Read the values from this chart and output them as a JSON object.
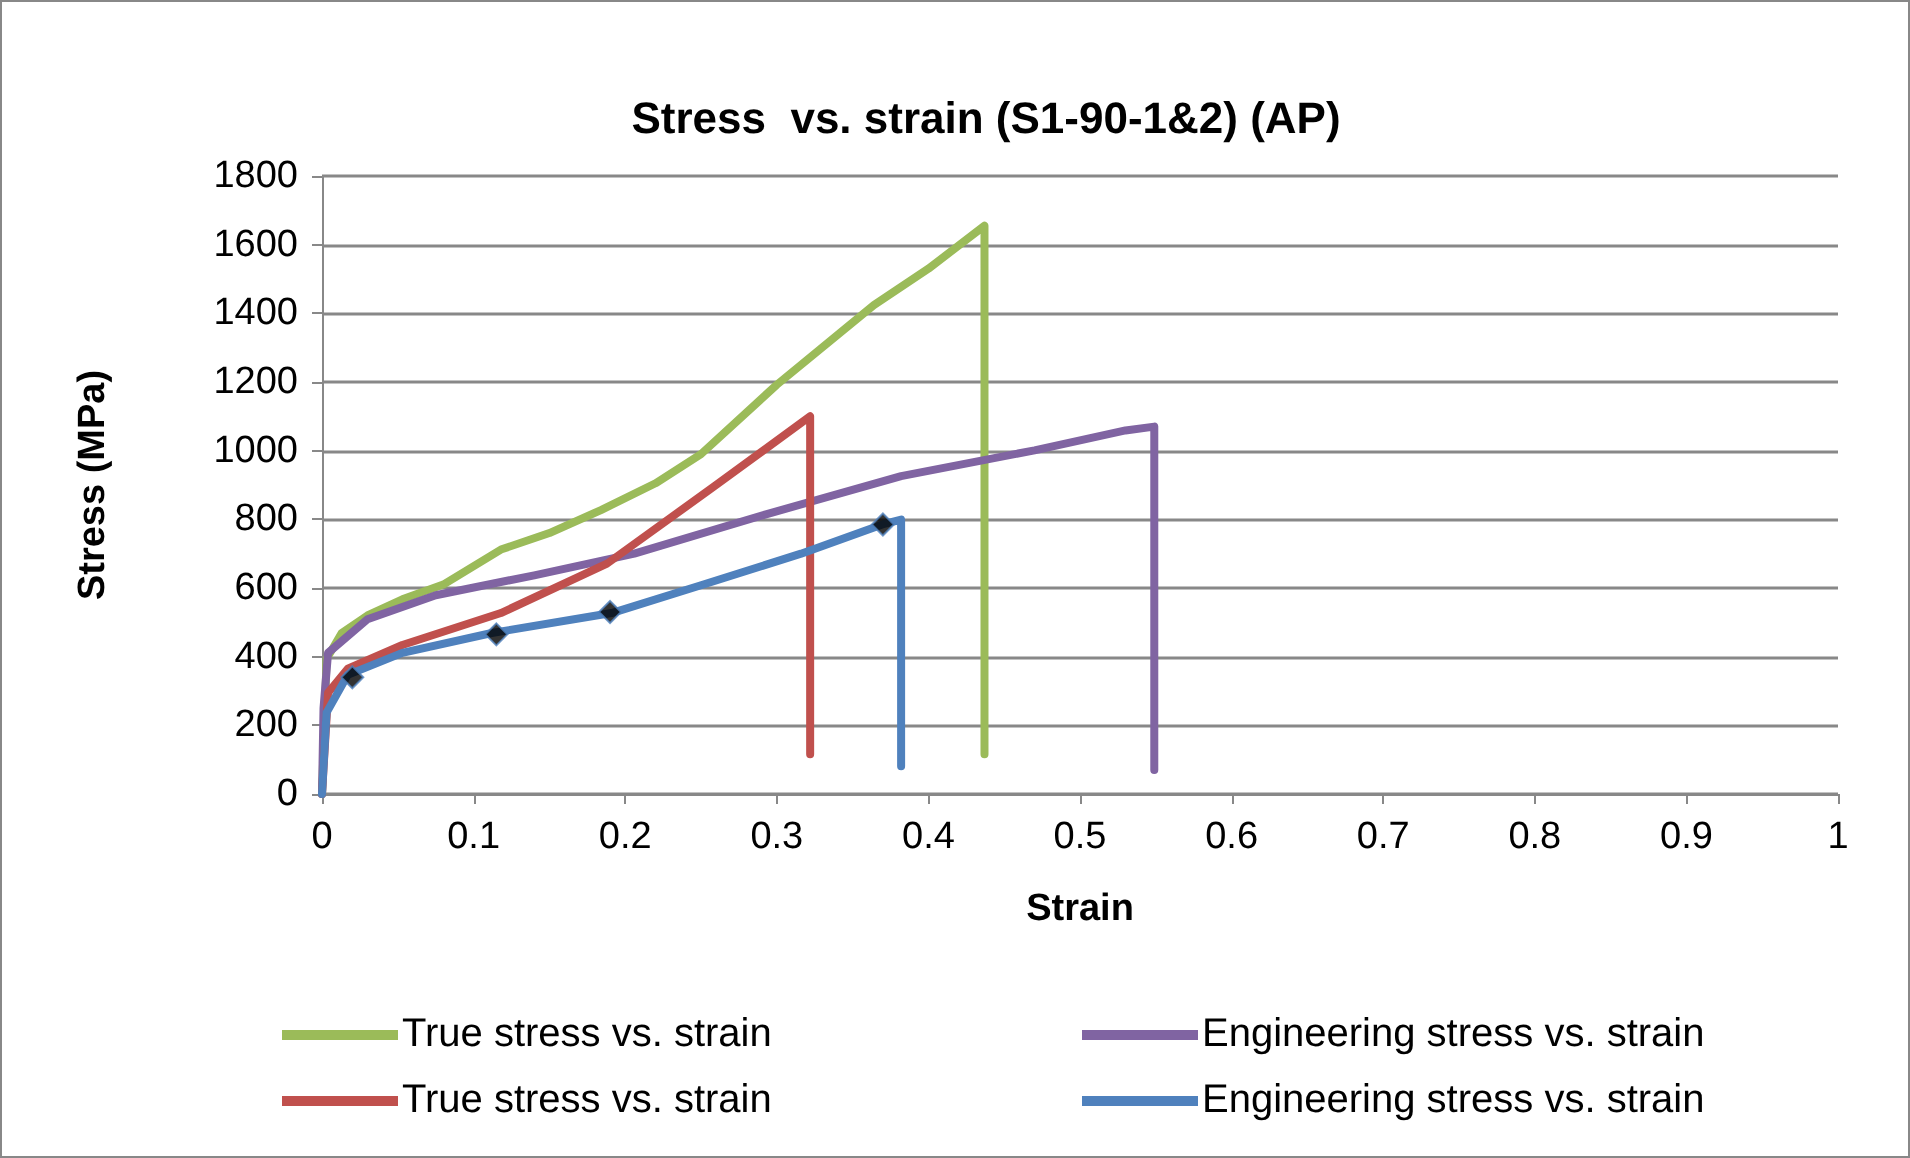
{
  "chart_data": {
    "type": "line",
    "title": "Stress  vs. strain (S1-90-1&2) (AP)",
    "xlabel": "Strain",
    "ylabel": "Stress (MPa)",
    "xlim": [
      0,
      1
    ],
    "xticks": [
      0,
      0.1,
      0.2,
      0.3,
      0.4,
      0.5,
      0.6,
      0.7,
      0.8,
      0.9,
      1
    ],
    "ylim": [
      0,
      1800
    ],
    "yticks": [
      0,
      200,
      400,
      600,
      800,
      1000,
      1200,
      1400,
      1600,
      1800
    ],
    "grid": "y",
    "legend": "bottom",
    "line_style": "solid",
    "series": [
      {
        "name": "True stress vs. strain",
        "color": "#9bbb59",
        "marker": "none",
        "x": [
          0,
          0.003,
          0.013,
          0.03,
          0.053,
          0.08,
          0.118,
          0.15,
          0.184,
          0.22,
          0.25,
          0.3,
          0.364,
          0.4,
          0.437,
          0.437
        ],
        "values": [
          0,
          393,
          469,
          520,
          567,
          610,
          712,
          760,
          827,
          905,
          990,
          1192,
          1424,
          1530,
          1655,
          116
        ]
      },
      {
        "name": "Engineering stress vs. strain",
        "color": "#8064a2",
        "marker": "none",
        "x": [
          0,
          0.001,
          0.004,
          0.03,
          0.075,
          0.14,
          0.206,
          0.294,
          0.382,
          0.47,
          0.53,
          0.549,
          0.549
        ],
        "values": [
          0,
          250,
          411,
          509,
          579,
          637,
          700,
          816,
          926,
          1001,
          1059,
          1070,
          70
        ]
      },
      {
        "name": "True stress vs. strain",
        "color": "#c0504d",
        "marker": "none",
        "x": [
          0,
          0.004,
          0.017,
          0.053,
          0.118,
          0.188,
          0.259,
          0.322,
          0.322
        ],
        "values": [
          0,
          295,
          365,
          434,
          527,
          671,
          897,
          1100,
          116
        ]
      },
      {
        "name": "Engineering stress vs. strain",
        "color": "#4f81bd",
        "marker": "none",
        "x": [
          0,
          0.003,
          0.017,
          0.053,
          0.112,
          0.191,
          0.25,
          0.316,
          0.371,
          0.382,
          0.382
        ],
        "values": [
          0,
          237,
          347,
          411,
          469,
          527,
          608,
          700,
          787,
          799,
          81
        ]
      },
      {
        "type": "scatter",
        "color": "#000000",
        "marker": "diamond",
        "x": [
          0.02,
          0.115,
          0.19,
          0.37
        ],
        "values": [
          340,
          465,
          530,
          785
        ]
      }
    ]
  }
}
